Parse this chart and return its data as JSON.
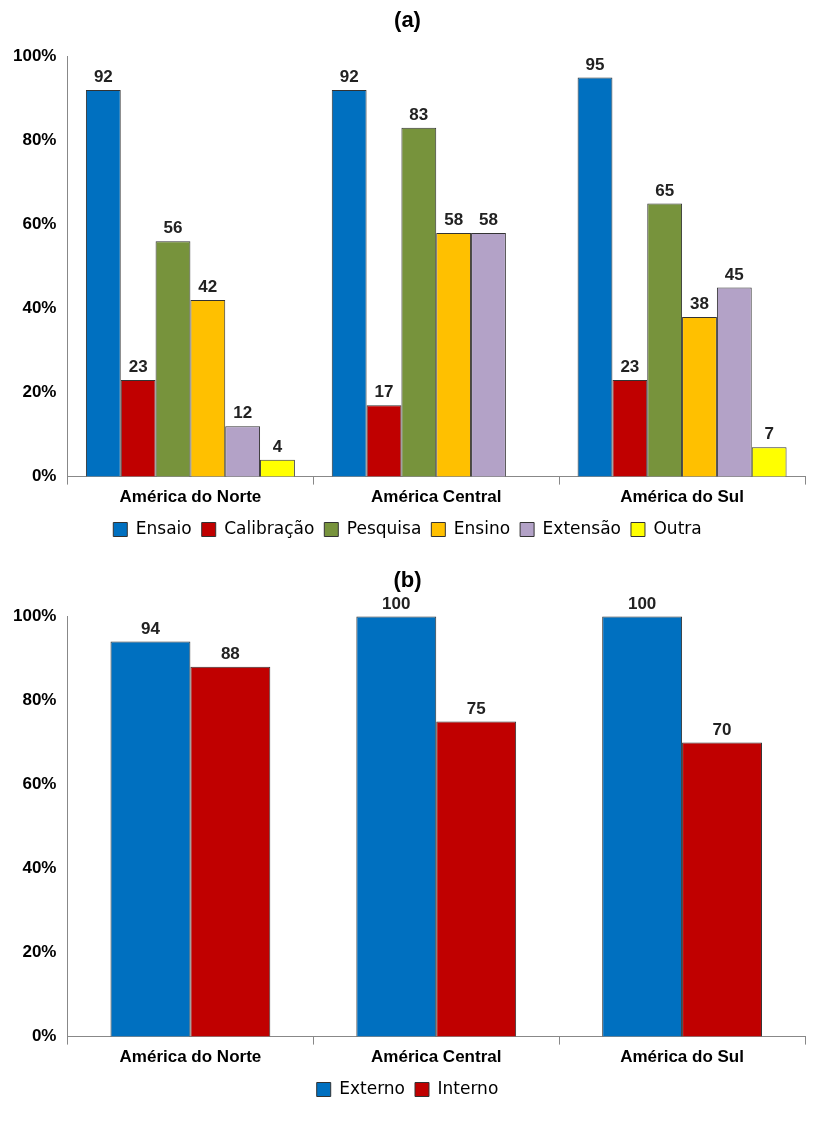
{
  "chart_data": [
    {
      "type": "bar",
      "title": "(a)",
      "categories": [
        "América do Norte",
        "América Central",
        "América do Sul"
      ],
      "series": [
        {
          "name": "Ensaio",
          "color": "#0070c0",
          "values": [
            92,
            92,
            95
          ]
        },
        {
          "name": "Calibração",
          "color": "#c00000",
          "values": [
            23,
            17,
            23
          ]
        },
        {
          "name": "Pesquisa",
          "color": "#77933c",
          "values": [
            56,
            83,
            65
          ]
        },
        {
          "name": "Ensino",
          "color": "#ffc000",
          "values": [
            42,
            58,
            38
          ]
        },
        {
          "name": "Extensão",
          "color": "#b3a2c7",
          "values": [
            12,
            58,
            45
          ]
        },
        {
          "name": "Outra",
          "color": "#ffff00",
          "values": [
            4,
            null,
            7
          ]
        }
      ],
      "ylim": [
        0,
        100
      ],
      "yticks": [
        {
          "value": 0,
          "label": "0%"
        },
        {
          "value": 20,
          "label": "20%"
        },
        {
          "value": 40,
          "label": "40%"
        },
        {
          "value": 60,
          "label": "60%"
        },
        {
          "value": 80,
          "label": "80%"
        },
        {
          "value": 100,
          "label": "100%"
        }
      ],
      "grid": false,
      "legend": "bottom",
      "data_labels": true
    },
    {
      "type": "bar",
      "title": "(b)",
      "categories": [
        "América do Norte",
        "América Central",
        "América do Sul"
      ],
      "series": [
        {
          "name": "Externo",
          "color": "#0070c0",
          "values": [
            94,
            100,
            100
          ]
        },
        {
          "name": "Interno",
          "color": "#c00000",
          "values": [
            88,
            75,
            70
          ]
        }
      ],
      "ylim": [
        0,
        100
      ],
      "yticks": [
        {
          "value": 0,
          "label": "0%"
        },
        {
          "value": 20,
          "label": "20%"
        },
        {
          "value": 40,
          "label": "40%"
        },
        {
          "value": 60,
          "label": "60%"
        },
        {
          "value": 80,
          "label": "80%"
        },
        {
          "value": 100,
          "label": "100%"
        }
      ],
      "grid": false,
      "legend": "bottom",
      "data_labels": true
    }
  ]
}
